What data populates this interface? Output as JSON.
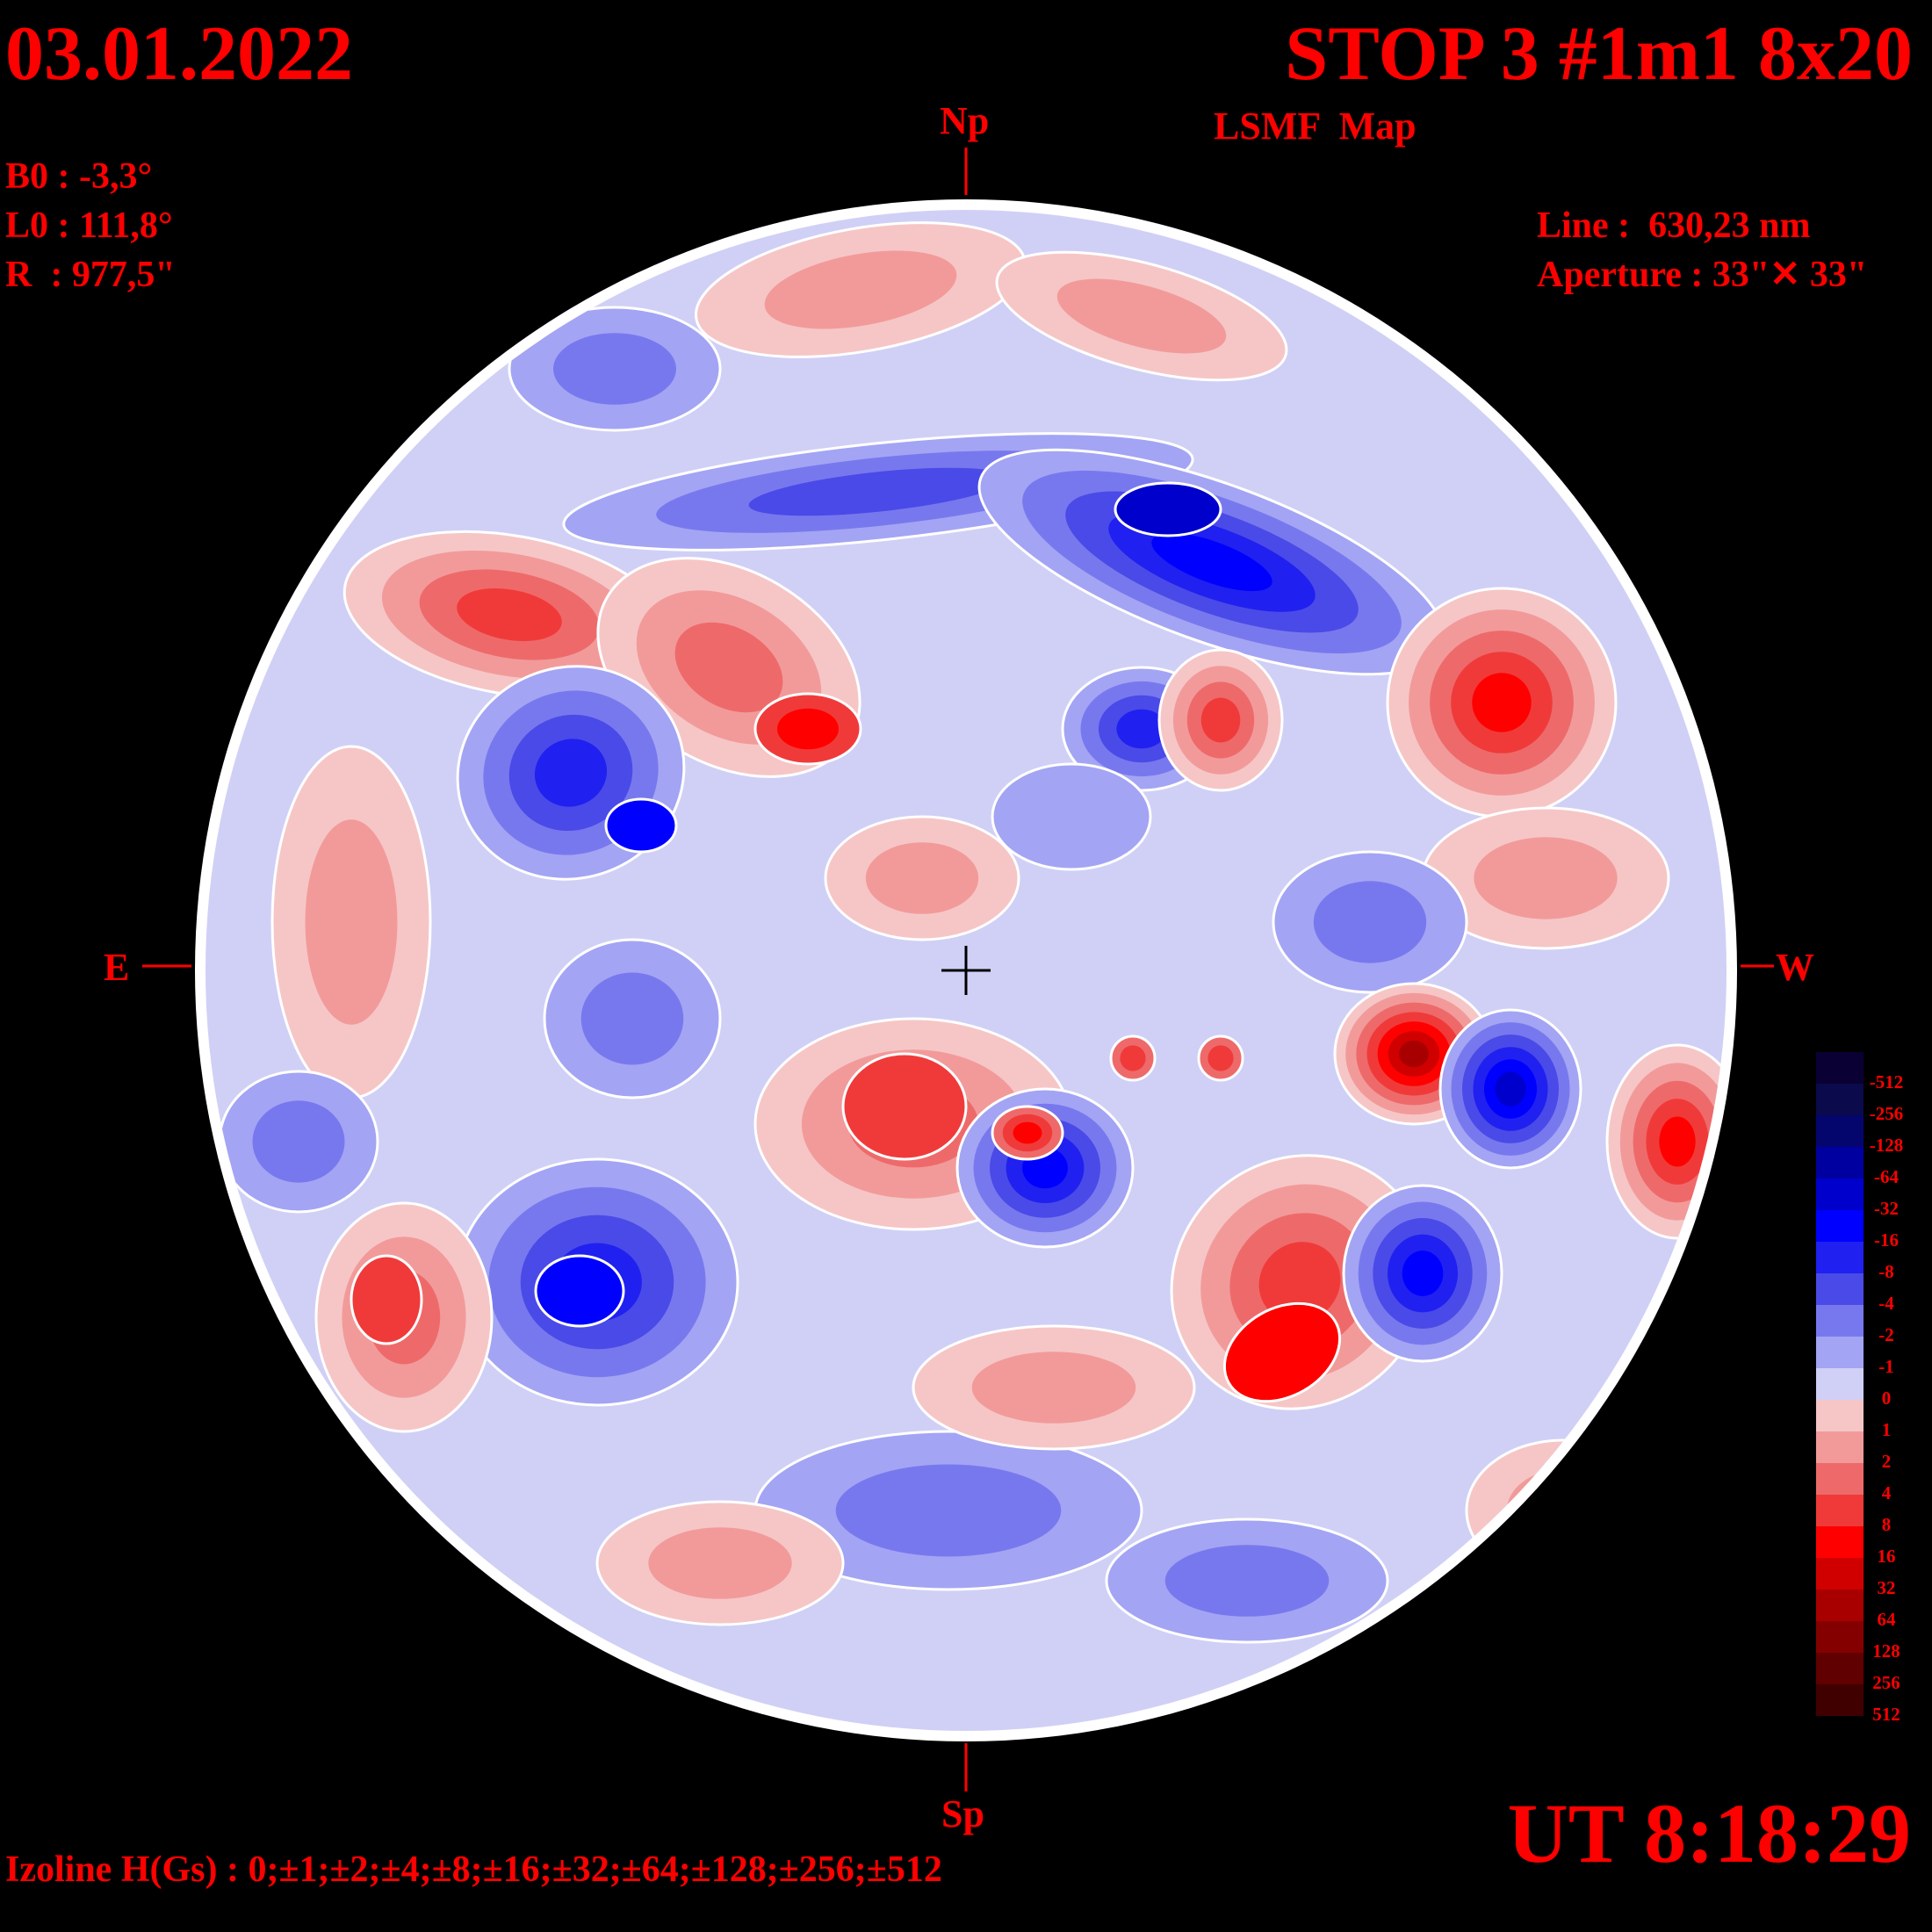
{
  "header": {
    "date": "03.01.2022",
    "title": "STOP 3 #1m1 8x20",
    "subtitle": "LSMF  Map"
  },
  "params": {
    "b0": "B0 : -3,3°",
    "l0": "L0 : 111,8°",
    "r": "R  : 977,5\"",
    "line": "Line :  630,23 nm",
    "aperture": "Aperture : 33\"✕ 33\""
  },
  "compass": {
    "north": "Np",
    "south": "Sp",
    "east": "E",
    "west": "W"
  },
  "footer": {
    "time": "UT 8:18:29",
    "izoline": "Izoline H(Gs) : 0;±1;±2;±4;±8;±16;±32;±64;±128;±256;±512"
  },
  "legend": {
    "levels": [
      {
        "label": "-512",
        "color": "#0b0033"
      },
      {
        "label": "-256",
        "color": "#0a0a4d"
      },
      {
        "label": "-128",
        "color": "#05056e"
      },
      {
        "label": "-64",
        "color": "#0000a0"
      },
      {
        "label": "-32",
        "color": "#0000cc"
      },
      {
        "label": "-16",
        "color": "#0000ff"
      },
      {
        "label": "-8",
        "color": "#2020f0"
      },
      {
        "label": "-4",
        "color": "#4a4ae8"
      },
      {
        "label": "-2",
        "color": "#7878ee"
      },
      {
        "label": "-1",
        "color": "#a4a4f4"
      },
      {
        "label": "0",
        "color": "#d0d0f6"
      },
      {
        "label": "1",
        "color": "#f6c6c6"
      },
      {
        "label": "2",
        "color": "#f29a9a"
      },
      {
        "label": "4",
        "color": "#ee6a6a"
      },
      {
        "label": "8",
        "color": "#f03a3a"
      },
      {
        "label": "16",
        "color": "#ff0000"
      },
      {
        "label": "32",
        "color": "#d00000"
      },
      {
        "label": "64",
        "color": "#a80000"
      },
      {
        "label": "128",
        "color": "#840000"
      },
      {
        "label": "256",
        "color": "#600000"
      },
      {
        "label": "512",
        "color": "#400000"
      }
    ]
  },
  "colors": {
    "text": "#ff0000",
    "background": "#000000",
    "disk_edge": "#ffffff",
    "isoline": "#ffffff"
  }
}
